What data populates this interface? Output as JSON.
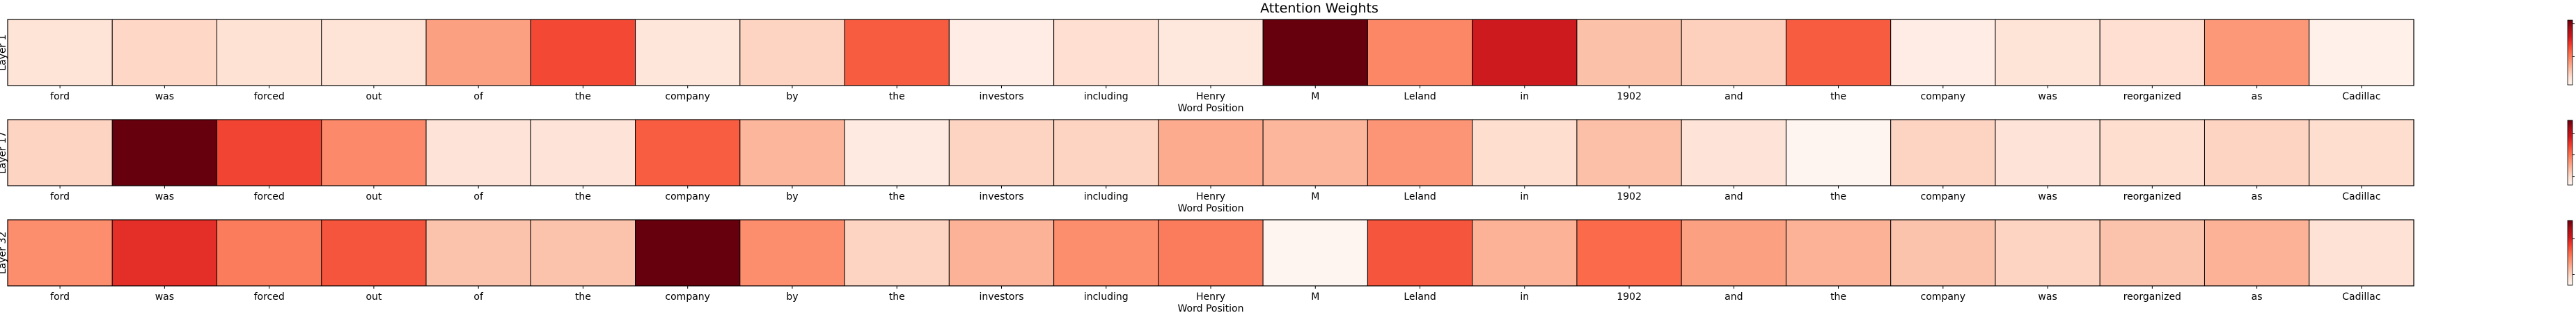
{
  "chart_data": {
    "type": "heatmap",
    "title": "Attention Weights",
    "xlabel": "Word Position",
    "categories": [
      "ford",
      "was",
      "forced",
      "out",
      "of",
      "the",
      "company",
      "by",
      "the",
      "investors",
      "including",
      "Henry",
      "M",
      "Leland",
      "in",
      "1902",
      "and",
      "the",
      "company",
      "was",
      "reorganized",
      "as",
      "Cadillac"
    ],
    "colormap": "Reds",
    "panels": [
      {
        "name": "Layer 1",
        "vmin": 0.003,
        "vmax": 0.042,
        "colorbar_ticks": [
          0.02,
          0.04
        ],
        "values": [
          0.007,
          0.009,
          0.0075,
          0.007,
          0.016,
          0.026,
          0.0065,
          0.0095,
          0.024,
          0.005,
          0.008,
          0.006,
          0.042,
          0.019,
          0.032,
          0.012,
          0.01,
          0.024,
          0.005,
          0.007,
          0.008,
          0.017,
          0.004
        ]
      },
      {
        "name": "Layer 17",
        "vmin": 0.003,
        "vmax": 0.018,
        "colorbar_ticks": [
          0.005,
          0.01,
          0.015
        ],
        "values": [
          0.0055,
          0.018,
          0.012,
          0.009,
          0.0045,
          0.0045,
          0.011,
          0.007,
          0.004,
          0.0055,
          0.0055,
          0.0075,
          0.007,
          0.0085,
          0.005,
          0.0065,
          0.0045,
          0.003,
          0.0055,
          0.0045,
          0.005,
          0.0055,
          0.005
        ]
      },
      {
        "name": "Layer 32",
        "vmin": 0.0035,
        "vmax": 0.0125,
        "colorbar_ticks": [
          0.005,
          0.01
        ],
        "values": [
          0.007,
          0.0095,
          0.0075,
          0.0085,
          0.0055,
          0.0055,
          0.0125,
          0.007,
          0.005,
          0.006,
          0.007,
          0.0075,
          0.0035,
          0.0085,
          0.006,
          0.008,
          0.0065,
          0.006,
          0.0055,
          0.005,
          0.0055,
          0.006,
          0.0045
        ]
      }
    ]
  }
}
